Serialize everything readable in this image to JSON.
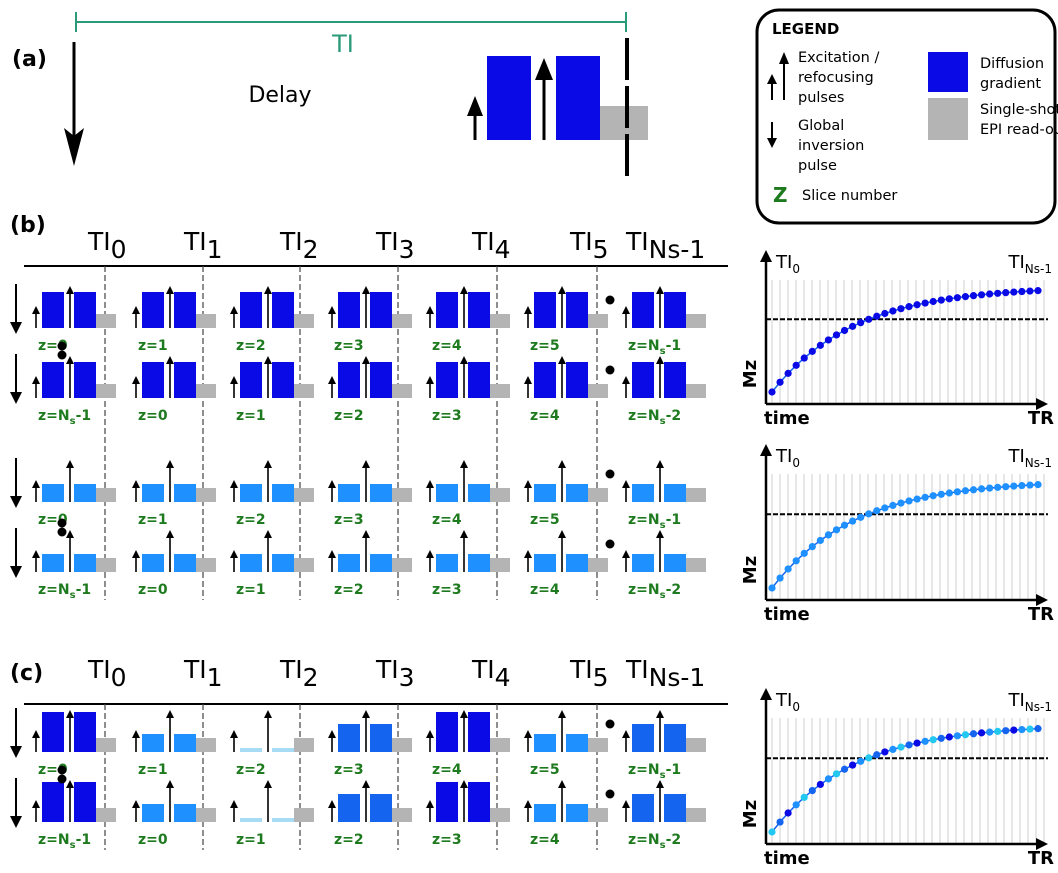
{
  "panel_a": {
    "label": "(a)",
    "ti_label": "TI",
    "delay_label": "Delay"
  },
  "legend": {
    "title": "LEGEND",
    "excitation_lines": [
      "Excitation /",
      "refocusing",
      "pulses"
    ],
    "inversion_lines": [
      "Global",
      "inversion",
      "pulse"
    ],
    "slice_symbol": "Z",
    "slice_label": "Slice number",
    "diffusion_lines": [
      "Diffusion",
      "gradient"
    ],
    "epi_lines": [
      "Single-shot",
      "EPI read-out"
    ]
  },
  "panel_b": {
    "label": "(b)",
    "ti_labels": [
      {
        "main": "TI",
        "sub": "0"
      },
      {
        "main": "TI",
        "sub": "1"
      },
      {
        "main": "TI",
        "sub": "2"
      },
      {
        "main": "TI",
        "sub": "3"
      },
      {
        "main": "TI",
        "sub": "4"
      },
      {
        "main": "TI",
        "sub": "5"
      },
      {
        "main": "TI",
        "sub": "Ns-1"
      }
    ],
    "rows": [
      {
        "z": [
          [
            "z=0",
            ""
          ],
          [
            "z=1",
            ""
          ],
          [
            "z=2",
            ""
          ],
          [
            "z=3",
            ""
          ],
          [
            "z=4",
            ""
          ],
          [
            "z=5",
            ""
          ],
          [
            "z=N",
            "s",
            "-1"
          ]
        ]
      },
      {
        "z": [
          [
            "z=N",
            "s",
            "-1"
          ],
          [
            "z=0",
            ""
          ],
          [
            "z=1",
            ""
          ],
          [
            "z=2",
            ""
          ],
          [
            "z=3",
            ""
          ],
          [
            "z=4",
            ""
          ],
          [
            "z=N",
            "s",
            "-2"
          ]
        ]
      },
      {
        "z": [
          [
            "z=0",
            ""
          ],
          [
            "z=1",
            ""
          ],
          [
            "z=2",
            ""
          ],
          [
            "z=3",
            ""
          ],
          [
            "z=4",
            ""
          ],
          [
            "z=5",
            ""
          ],
          [
            "z=N",
            "s",
            "-1"
          ]
        ]
      },
      {
        "z": [
          [
            "z=N",
            "s",
            "-1"
          ],
          [
            "z=0",
            ""
          ],
          [
            "z=1",
            ""
          ],
          [
            "z=2",
            ""
          ],
          [
            "z=3",
            ""
          ],
          [
            "z=4",
            ""
          ],
          [
            "z=N",
            "s",
            "-2"
          ]
        ]
      }
    ]
  },
  "panel_c": {
    "label": "(c)",
    "ti_labels": [
      {
        "main": "TI",
        "sub": "0"
      },
      {
        "main": "TI",
        "sub": "1"
      },
      {
        "main": "TI",
        "sub": "2"
      },
      {
        "main": "TI",
        "sub": "3"
      },
      {
        "main": "TI",
        "sub": "4"
      },
      {
        "main": "TI",
        "sub": "5"
      },
      {
        "main": "TI",
        "sub": "Ns-1"
      }
    ],
    "rows": [
      {
        "z": [
          [
            "z=0",
            ""
          ],
          [
            "z=1",
            ""
          ],
          [
            "z=2",
            ""
          ],
          [
            "z=3",
            ""
          ],
          [
            "z=4",
            ""
          ],
          [
            "z=5",
            ""
          ],
          [
            "z=N",
            "s",
            "-1"
          ]
        ]
      },
      {
        "z": [
          [
            "z=N",
            "s",
            "-1"
          ],
          [
            "z=0",
            ""
          ],
          [
            "z=1",
            ""
          ],
          [
            "z=2",
            ""
          ],
          [
            "z=3",
            ""
          ],
          [
            "z=4",
            ""
          ],
          [
            "z=N",
            "s",
            "-2"
          ]
        ]
      }
    ]
  },
  "plots": [
    {
      "ti_start": "TI",
      "ti_start_sub": "0",
      "ti_end": "TI",
      "ti_end_sub": "Ns-1",
      "ylabel": "Mz",
      "xlabel": "time",
      "xend": "TR"
    },
    {
      "ti_start": "TI",
      "ti_start_sub": "0",
      "ti_end": "TI",
      "ti_end_sub": "Ns-1",
      "ylabel": "Mz",
      "xlabel": "time",
      "xend": "TR"
    },
    {
      "ti_start": "TI",
      "ti_start_sub": "0",
      "ti_end": "TI",
      "ti_end_sub": "Ns-1",
      "ylabel": "Mz",
      "xlabel": "time",
      "xend": "TR"
    }
  ],
  "colors": {
    "dark_blue": "#0a0ae6",
    "light_blue": "#1e90ff",
    "mid_blue": "#1464f0",
    "pale_blue": "#a8dcf5",
    "cyan": "#22c8f0",
    "gray": "#b4b4b4",
    "teal": "#2a9a7a",
    "green": "#1e7a1e"
  }
}
